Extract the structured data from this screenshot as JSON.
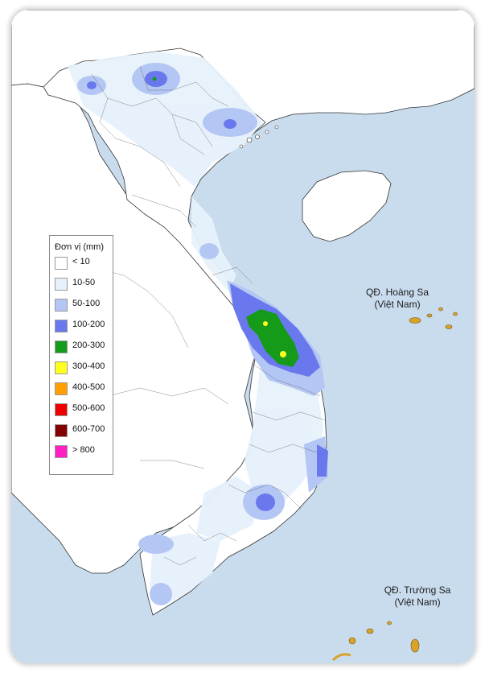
{
  "legend": {
    "title": "Đơn vị (mm)",
    "items": [
      {
        "label": "< 10",
        "color": "#ffffff"
      },
      {
        "label": "10-50",
        "color": "#e6f1fb"
      },
      {
        "label": "50-100",
        "color": "#b4c7f4"
      },
      {
        "label": "100-200",
        "color": "#6a78ee"
      },
      {
        "label": "200-300",
        "color": "#159a1a"
      },
      {
        "label": "300-400",
        "color": "#ffff1e"
      },
      {
        "label": "400-500",
        "color": "#ff9f00"
      },
      {
        "label": "500-600",
        "color": "#ee0000"
      },
      {
        "label": "600-700",
        "color": "#850000"
      },
      {
        "label": "> 800",
        "color": "#ff1fc3"
      }
    ]
  },
  "labels": {
    "hoang_sa_name": "QĐ. Hoàng Sa",
    "hoang_sa_country": "(Việt Nam)",
    "truong_sa_name": "QĐ. Trường Sa",
    "truong_sa_country": "(Việt Nam)"
  },
  "colors": {
    "sea": "#c9dced",
    "land": "#ffffff",
    "island_fill": "#d9a32a",
    "border_line": "#333333"
  }
}
